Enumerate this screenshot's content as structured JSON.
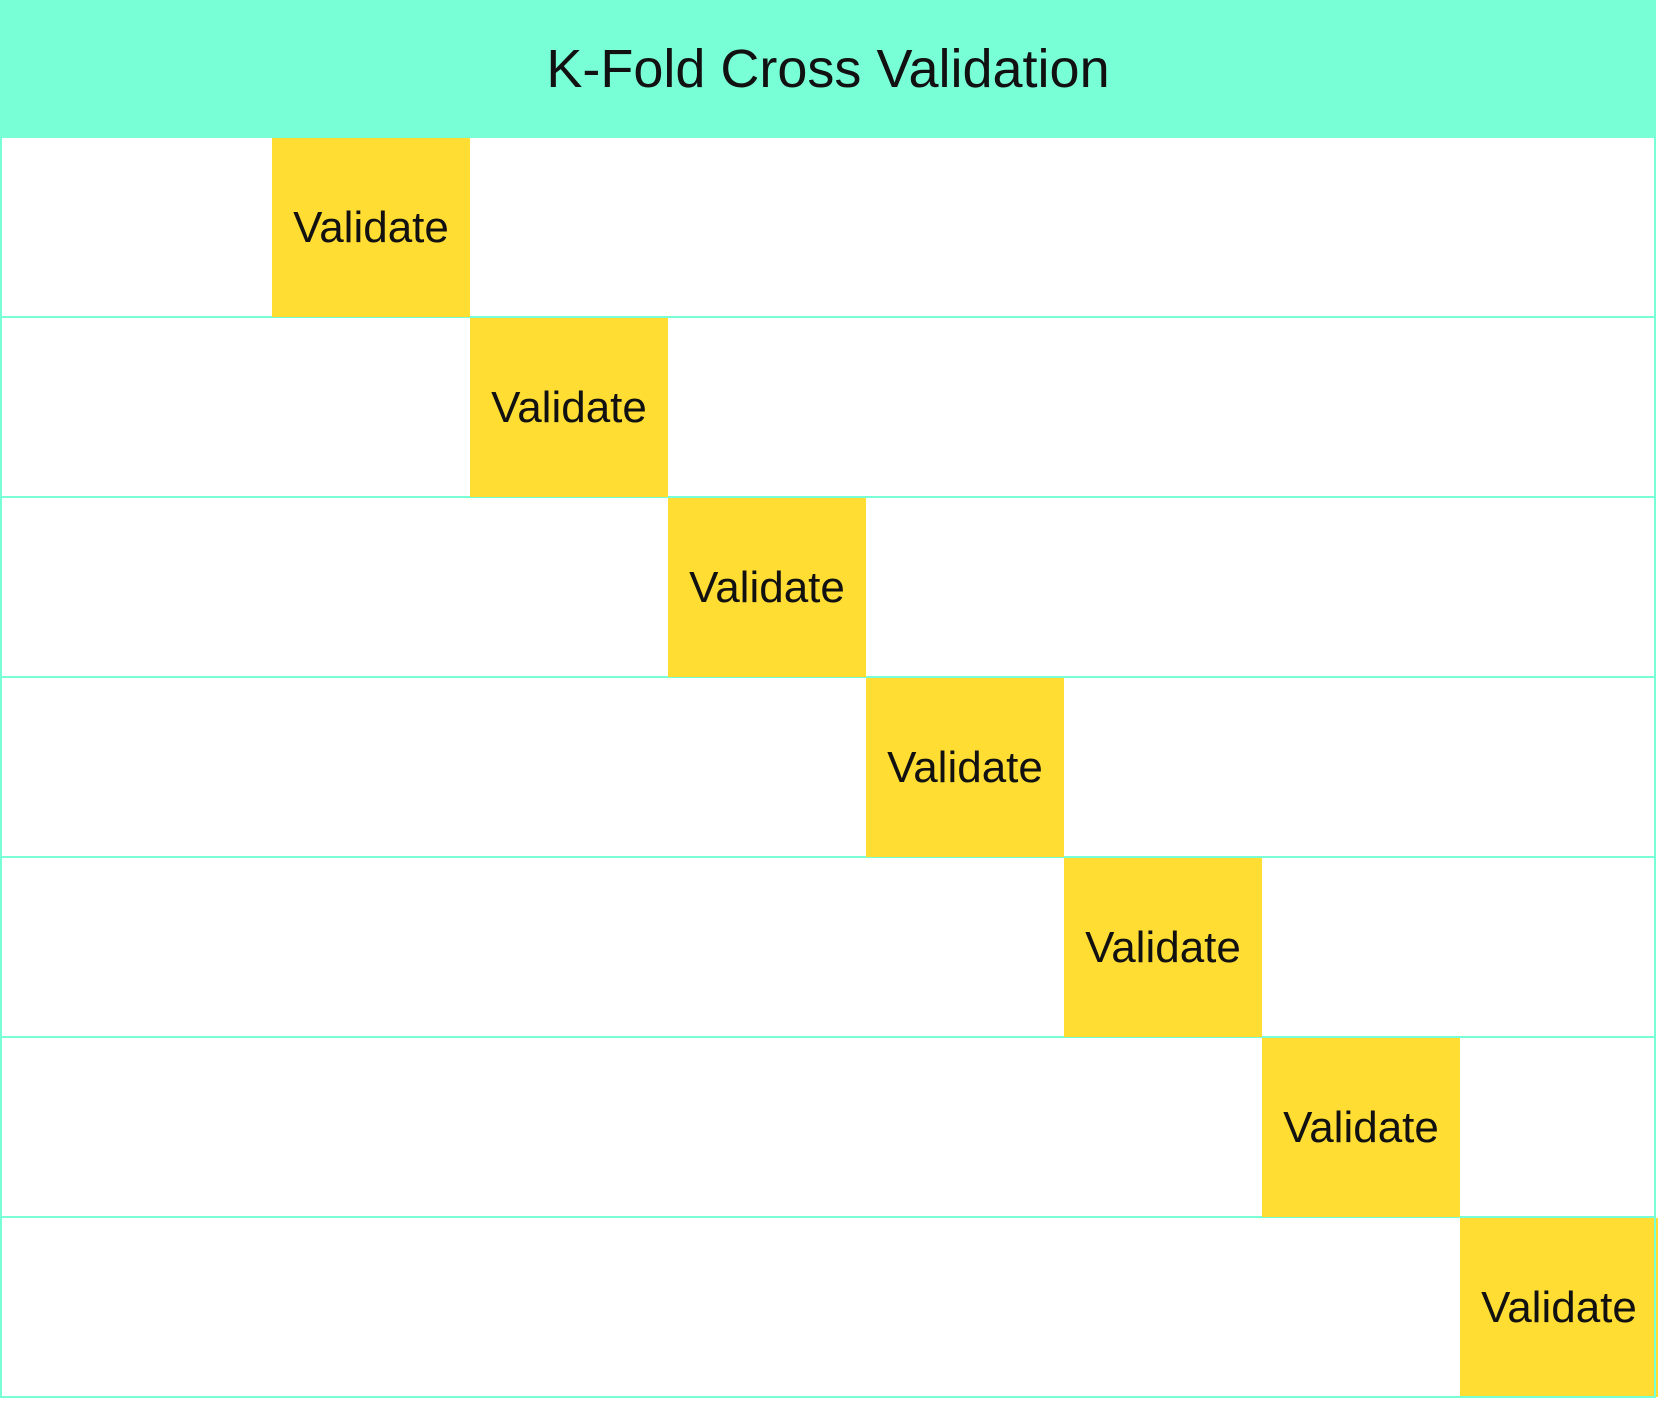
{
  "title": "K-Fold Cross Validation",
  "colors": {
    "header_bg": "#78ffd6",
    "grid_line": "#78ffd6",
    "validate_fill": "#ffdd33",
    "text": "#111111"
  },
  "folds": [
    {
      "label": "Validate",
      "position": 2
    },
    {
      "label": "Validate",
      "position": 3
    },
    {
      "label": "Validate",
      "position": 4
    },
    {
      "label": "Validate",
      "position": 5
    },
    {
      "label": "Validate",
      "position": 6
    },
    {
      "label": "Validate",
      "position": 7
    },
    {
      "label": "Validate",
      "position": 8
    }
  ]
}
